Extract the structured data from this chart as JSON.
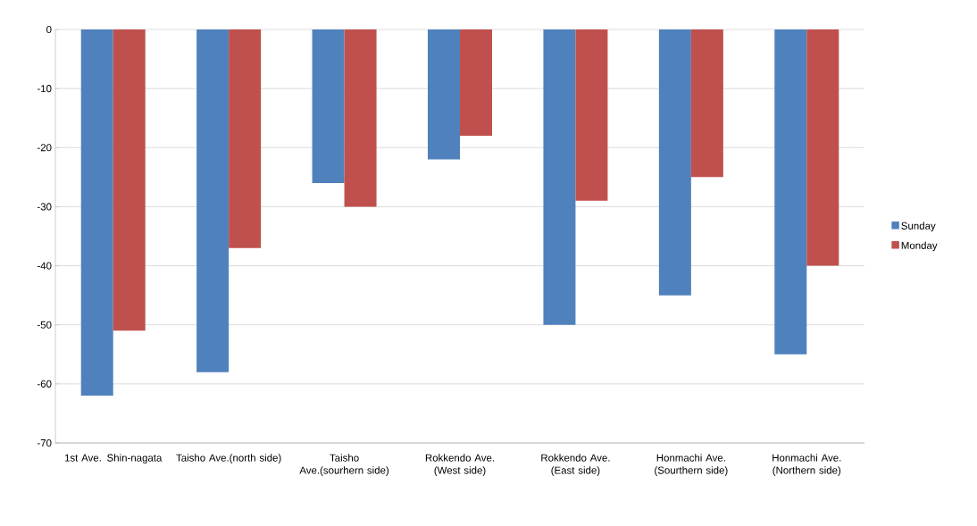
{
  "chart_data": {
    "type": "bar",
    "categories": [
      "1st Ave. Shin-nagata",
      "Taisho Ave.(north side)",
      "Taisho Ave.(sourhern side)",
      "Rokkendo Ave. (West side)",
      "Rokkendo Ave. (East side)",
      "Honmachi Ave. (Sourthern side)",
      "Honmachi Ave. (Northern side)"
    ],
    "series": [
      {
        "name": "Sunday",
        "color": "#4f81bd",
        "values": [
          -62,
          -58,
          -26,
          -22,
          -50,
          -45,
          -55
        ]
      },
      {
        "name": "Monday",
        "color": "#c0504d",
        "values": [
          -51,
          -37,
          -30,
          -18,
          -29,
          -25,
          -40
        ]
      }
    ],
    "ylim": [
      -70,
      0
    ],
    "yticks": [
      -70,
      -60,
      -50,
      -40,
      -30,
      -20,
      -10,
      0
    ],
    "grid": "y",
    "legend": "right"
  }
}
